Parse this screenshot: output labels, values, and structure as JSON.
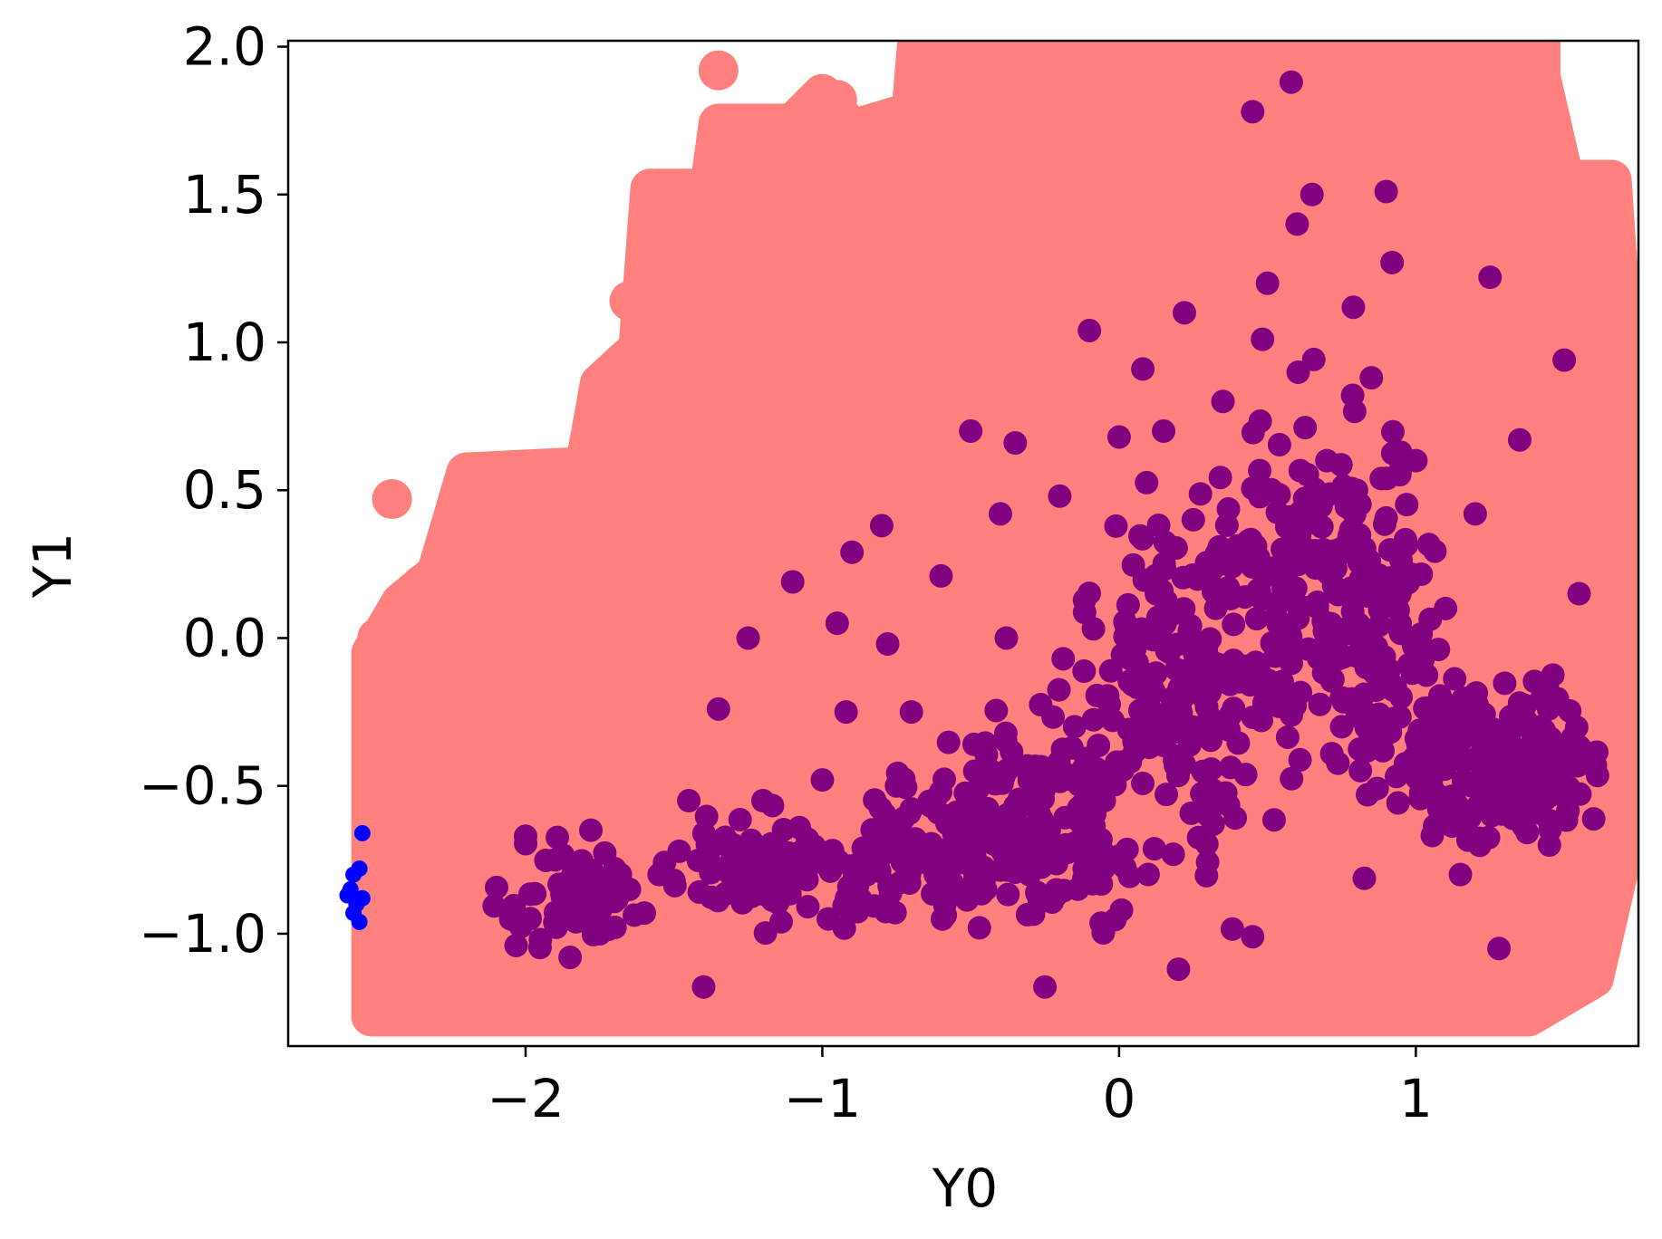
{
  "chart_data": {
    "type": "scatter",
    "title": "",
    "xlabel": "Y0",
    "ylabel": "Y1",
    "xlim": [
      -2.8,
      1.75
    ],
    "ylim": [
      -1.38,
      2.02
    ],
    "grid": false,
    "x_ticks": [
      -2,
      -1,
      0,
      1
    ],
    "x_tick_labels": [
      "−2",
      "−1",
      "0",
      "1"
    ],
    "y_ticks": [
      -1.0,
      -0.5,
      0.0,
      0.5,
      1.0,
      1.5,
      2.0
    ],
    "y_tick_labels": [
      "−1.0",
      "−0.5",
      "0.0",
      "0.5",
      "1.0",
      "1.5",
      "2.0"
    ],
    "series": [
      {
        "color": "#ff807c",
        "marker_size": "large",
        "points": [
          [
            -2.5,
            -1.25
          ],
          [
            -2.5,
            -1.0
          ],
          [
            -2.5,
            -0.6
          ],
          [
            -2.5,
            -0.2
          ],
          [
            -2.5,
            0.0
          ],
          [
            -2.4,
            0.1
          ],
          [
            -2.45,
            0.47
          ],
          [
            -2.35,
            0.18
          ],
          [
            -2.3,
            -1.25
          ],
          [
            -2.2,
            0.38
          ],
          [
            -2.2,
            0.2
          ],
          [
            -2.1,
            0.56
          ],
          [
            -2.0,
            0.56
          ],
          [
            -1.9,
            0.56
          ],
          [
            -1.8,
            0.55
          ],
          [
            -1.75,
            0.86
          ],
          [
            -1.65,
            1.14
          ],
          [
            -1.6,
            0.96
          ],
          [
            -1.55,
            1.52
          ],
          [
            -1.5,
            1.42
          ],
          [
            -1.35,
            1.92
          ],
          [
            -1.3,
            1.72
          ],
          [
            -1.25,
            1.53
          ],
          [
            -1.1,
            1.72
          ],
          [
            -1.05,
            1.62
          ],
          [
            -0.95,
            1.82
          ],
          [
            -0.85,
            1.72
          ],
          [
            -0.8,
            1.62
          ],
          [
            -0.65,
            2.0
          ],
          [
            -0.6,
            1.82
          ],
          [
            -0.5,
            1.92
          ],
          [
            0.5,
            2.0
          ],
          [
            1.0,
            2.0
          ],
          [
            1.4,
            1.92
          ],
          [
            1.55,
            1.53
          ],
          [
            1.65,
            1.53
          ],
          [
            1.65,
            1.25
          ],
          [
            1.65,
            1.05
          ],
          [
            1.65,
            0.85
          ],
          [
            1.65,
            0.5
          ],
          [
            1.65,
            0.0
          ],
          [
            1.65,
            -0.5
          ],
          [
            1.65,
            -0.8
          ],
          [
            1.5,
            -1.15
          ],
          [
            1.2,
            -1.25
          ],
          [
            0.8,
            -1.25
          ],
          [
            0.0,
            -1.25
          ],
          [
            -0.5,
            -1.25
          ],
          [
            -1.0,
            -1.25
          ],
          [
            -1.5,
            -1.25
          ],
          [
            -2.0,
            -1.2
          ],
          [
            -1.8,
            -1.25
          ],
          [
            -1.6,
            -1.25
          ]
        ],
        "fill_region": [
          [
            -2.52,
            -1.28
          ],
          [
            -2.52,
            -0.05
          ],
          [
            -2.42,
            0.12
          ],
          [
            -2.3,
            0.22
          ],
          [
            -2.2,
            0.56
          ],
          [
            -1.8,
            0.58
          ],
          [
            -1.75,
            0.86
          ],
          [
            -1.62,
            0.98
          ],
          [
            -1.58,
            1.52
          ],
          [
            -1.38,
            1.52
          ],
          [
            -1.35,
            1.74
          ],
          [
            -1.1,
            1.74
          ],
          [
            -1.0,
            1.84
          ],
          [
            -0.9,
            1.72
          ],
          [
            -0.7,
            1.78
          ],
          [
            -0.68,
            2.02
          ],
          [
            1.42,
            2.02
          ],
          [
            1.42,
            1.9
          ],
          [
            1.5,
            1.55
          ],
          [
            1.66,
            1.55
          ],
          [
            1.68,
            1.25
          ],
          [
            1.68,
            -0.8
          ],
          [
            1.6,
            -1.15
          ],
          [
            1.38,
            -1.28
          ]
        ]
      },
      {
        "color": "#800080",
        "marker_size": "medium",
        "points": [
          [
            -2.05,
            -0.95
          ],
          [
            -2.0,
            -0.67
          ],
          [
            -1.95,
            -1.02
          ],
          [
            -1.9,
            -0.75
          ],
          [
            -1.85,
            -1.08
          ],
          [
            -1.8,
            -0.9
          ],
          [
            -1.78,
            -0.65
          ],
          [
            -1.75,
            -1.0
          ],
          [
            -1.7,
            -0.78
          ],
          [
            -1.65,
            -0.85
          ],
          [
            -1.6,
            -0.93
          ],
          [
            -1.55,
            -0.8
          ],
          [
            -1.5,
            -0.82
          ],
          [
            -1.45,
            -0.55
          ],
          [
            -1.4,
            -1.18
          ],
          [
            -1.35,
            -0.24
          ],
          [
            -1.3,
            -0.7
          ],
          [
            -1.25,
            0.0
          ],
          [
            -1.2,
            -0.55
          ],
          [
            -1.15,
            -0.85
          ],
          [
            -1.1,
            0.19
          ],
          [
            -1.05,
            -0.68
          ],
          [
            -1.0,
            -0.48
          ],
          [
            -0.98,
            -0.95
          ],
          [
            -0.95,
            0.05
          ],
          [
            -0.92,
            -0.25
          ],
          [
            -0.9,
            0.29
          ],
          [
            -0.85,
            -0.8
          ],
          [
            -0.8,
            0.38
          ],
          [
            -0.78,
            -0.02
          ],
          [
            -0.75,
            -0.5
          ],
          [
            -0.7,
            -0.25
          ],
          [
            -0.65,
            -0.7
          ],
          [
            -0.6,
            0.21
          ],
          [
            -0.55,
            -0.6
          ],
          [
            -0.5,
            0.7
          ],
          [
            -0.45,
            -0.85
          ],
          [
            -0.4,
            0.42
          ],
          [
            -0.38,
            0.0
          ],
          [
            -0.35,
            0.66
          ],
          [
            -0.3,
            -0.55
          ],
          [
            -0.25,
            -1.18
          ],
          [
            -0.2,
            0.48
          ],
          [
            -0.15,
            -0.3
          ],
          [
            -0.1,
            1.04
          ],
          [
            -0.05,
            -0.55
          ],
          [
            0.0,
            0.68
          ],
          [
            0.05,
            -0.35
          ],
          [
            0.08,
            0.91
          ],
          [
            0.1,
            0.0
          ],
          [
            0.15,
            0.7
          ],
          [
            0.2,
            -1.12
          ],
          [
            0.22,
            1.1
          ],
          [
            0.25,
            0.4
          ],
          [
            0.3,
            -0.6
          ],
          [
            0.35,
            0.8
          ],
          [
            0.4,
            -0.1
          ],
          [
            0.45,
            1.78
          ],
          [
            0.5,
            1.2
          ],
          [
            0.55,
            0.3
          ],
          [
            0.58,
            1.88
          ],
          [
            0.6,
            1.4
          ],
          [
            0.65,
            1.5
          ],
          [
            0.7,
            0.6
          ],
          [
            0.75,
            -0.3
          ],
          [
            0.8,
            0.5
          ],
          [
            0.85,
            0.88
          ],
          [
            0.9,
            1.51
          ],
          [
            0.92,
            1.27
          ],
          [
            0.95,
            -0.2
          ],
          [
            1.0,
            0.6
          ],
          [
            1.05,
            -0.5
          ],
          [
            1.1,
            0.1
          ],
          [
            1.15,
            -0.8
          ],
          [
            1.2,
            0.42
          ],
          [
            1.25,
            1.22
          ],
          [
            1.3,
            -0.5
          ],
          [
            1.35,
            0.67
          ],
          [
            1.4,
            -0.3
          ],
          [
            1.45,
            -0.7
          ],
          [
            1.5,
            0.94
          ],
          [
            1.55,
            0.15
          ],
          [
            1.55,
            -0.4
          ],
          [
            0.45,
            -1.01
          ],
          [
            1.28,
            -1.05
          ]
        ],
        "dense_regions": [
          {
            "center": [
              -1.85,
              -0.88
            ],
            "spread": [
              0.18,
              0.12
            ],
            "count": 50
          },
          {
            "center": [
              -1.2,
              -0.78
            ],
            "spread": [
              0.22,
              0.12
            ],
            "count": 70
          },
          {
            "center": [
              -0.7,
              -0.75
            ],
            "spread": [
              0.25,
              0.15
            ],
            "count": 110
          },
          {
            "center": [
              -0.3,
              -0.6
            ],
            "spread": [
              0.22,
              0.22
            ],
            "count": 160
          },
          {
            "center": [
              0.15,
              -0.2
            ],
            "spread": [
              0.22,
              0.35
            ],
            "count": 150
          },
          {
            "center": [
              0.55,
              0.1
            ],
            "spread": [
              0.25,
              0.45
            ],
            "count": 150
          },
          {
            "center": [
              0.85,
              0.15
            ],
            "spread": [
              0.15,
              0.45
            ],
            "count": 120
          },
          {
            "center": [
              1.2,
              -0.4
            ],
            "spread": [
              0.25,
              0.2
            ],
            "count": 150
          },
          {
            "center": [
              1.45,
              -0.45
            ],
            "spread": [
              0.1,
              0.18
            ],
            "count": 70
          }
        ]
      },
      {
        "color": "#0000ff",
        "marker_size": "small",
        "points": [
          [
            -2.6,
            -0.87
          ],
          [
            -2.59,
            -0.85
          ],
          [
            -2.58,
            -0.93
          ],
          [
            -2.58,
            -0.8
          ],
          [
            -2.57,
            -0.9
          ],
          [
            -2.56,
            -0.96
          ],
          [
            -2.56,
            -0.78
          ],
          [
            -2.55,
            -0.88
          ],
          [
            -2.55,
            -0.66
          ]
        ]
      }
    ]
  }
}
